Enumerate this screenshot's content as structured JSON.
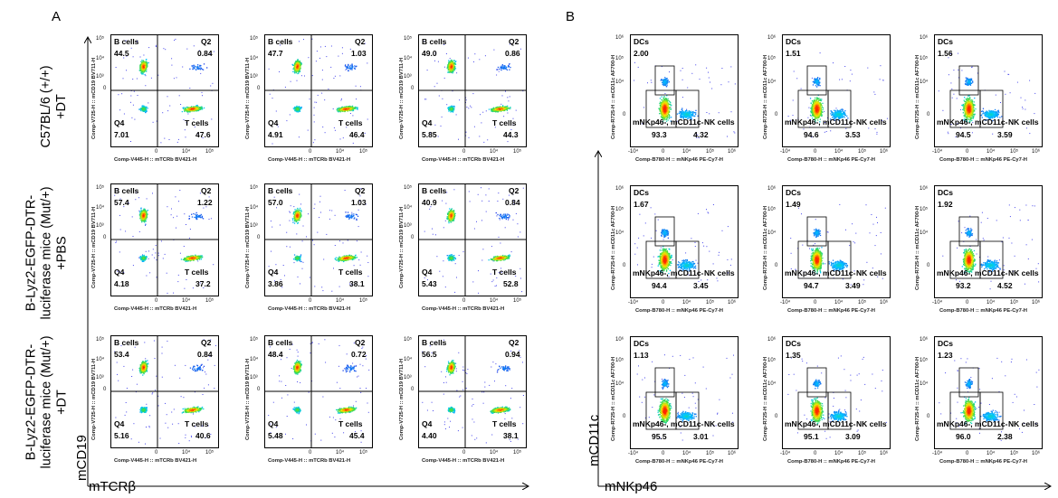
{
  "panels": {
    "a": {
      "letter": "A",
      "row_labels": [
        [
          "C57BL/6 (+/+)",
          "+DT"
        ],
        [
          "B-Lyz2-EGFP-DTR-",
          "luciferase mice (Mut/+)",
          "+PBS"
        ],
        [
          "B-Lyz2-EGFP-DTR-",
          "luciferase mice (Mut/+)",
          "+DT"
        ]
      ],
      "x_axis_title": "mTCRβ",
      "y_axis_title": "mCD19",
      "plot_xlabel": "Comp-V445-H :: mTCRb BV421-H",
      "plot_ylabel": "Comp-V725-H :: mCD19 BV711-H",
      "x_ticks": [
        "0",
        "10^4",
        "10^5"
      ],
      "y_ticks": [
        "0",
        "10^3",
        "10^4",
        "10^5"
      ],
      "gate_names": {
        "ul": "B cells",
        "ur": "Q2",
        "ll": "Q4",
        "lr": "T cells"
      },
      "plots": [
        [
          {
            "ul": "44.5",
            "ur": "0.84",
            "ll": "7.01",
            "lr": "47.6"
          },
          {
            "ul": "47.7",
            "ur": "1.03",
            "ll": "4.91",
            "lr": "46.4"
          },
          {
            "ul": "49.0",
            "ur": "0.86",
            "ll": "5.85",
            "lr": "44.3"
          }
        ],
        [
          {
            "ul": "57.4",
            "ur": "1.22",
            "ll": "4.18",
            "lr": "37.2"
          },
          {
            "ul": "57.0",
            "ur": "1.03",
            "ll": "3.86",
            "lr": "38.1"
          },
          {
            "ul": "40.9",
            "ur": "0.84",
            "ll": "5.43",
            "lr": "52.8"
          }
        ],
        [
          {
            "ul": "53.4",
            "ur": "0.84",
            "ll": "5.16",
            "lr": "40.6"
          },
          {
            "ul": "48.4",
            "ur": "0.72",
            "ll": "5.48",
            "lr": "45.4"
          },
          {
            "ul": "56.5",
            "ur": "0.94",
            "ll": "4.40",
            "lr": "38.1"
          }
        ]
      ]
    },
    "b": {
      "letter": "B",
      "x_axis_title": "mNKp46",
      "y_axis_title": "mCD11c",
      "plot_xlabel": "Comp-B780-H :: mNKp46 PE-Cy7-H",
      "plot_ylabel": "Comp-R725-H :: mCD11c AF700-H",
      "x_ticks": [
        "-10^4",
        "0",
        "10^4",
        "10^5",
        "10^6"
      ],
      "y_ticks": [
        "0",
        "10^4",
        "10^5",
        "10^6"
      ],
      "gate_names": {
        "dc": "DCs",
        "neg": "mNKp46-, mCD11c-",
        "nk": "NK cells"
      },
      "plots": [
        [
          {
            "dc": "2.00",
            "neg": "93.3",
            "nk": "4.32"
          },
          {
            "dc": "1.51",
            "neg": "94.6",
            "nk": "3.53"
          },
          {
            "dc": "1.56",
            "neg": "94.5",
            "nk": "3.59"
          }
        ],
        [
          {
            "dc": "1.67",
            "neg": "94.4",
            "nk": "3.45"
          },
          {
            "dc": "1.49",
            "neg": "94.7",
            "nk": "3.49"
          },
          {
            "dc": "1.92",
            "neg": "93.2",
            "nk": "4.52"
          }
        ],
        [
          {
            "dc": "1.13",
            "neg": "95.5",
            "nk": "3.01"
          },
          {
            "dc": "1.35",
            "neg": "95.1",
            "nk": "3.09"
          },
          {
            "dc": "1.23",
            "neg": "96.0",
            "nk": "2.38"
          }
        ]
      ]
    }
  }
}
